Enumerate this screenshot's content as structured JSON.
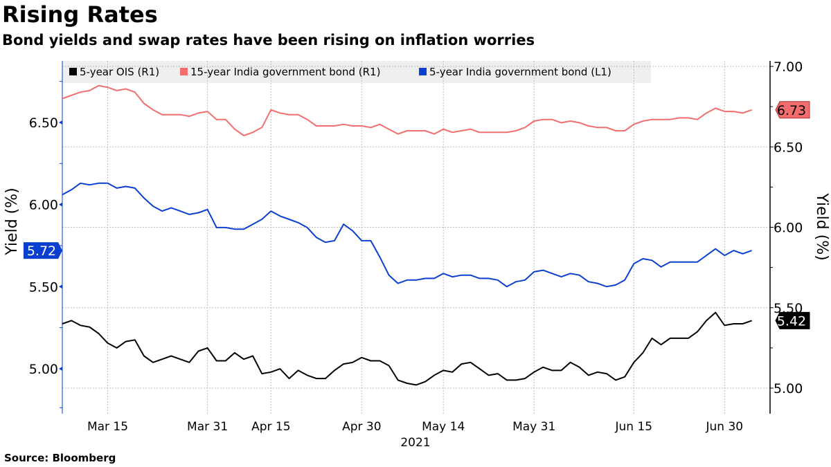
{
  "header": {
    "title": "Rising Rates",
    "subtitle": "Bond yields and swap rates have been rising on inflation worries"
  },
  "footer": {
    "source": "Source: Bloomberg"
  },
  "chart_data": {
    "type": "line",
    "title": "Rising Rates",
    "subtitle": "Bond yields and swap rates have been rising on inflation worries",
    "xlabel": "2021",
    "x_tick_labels": [
      "Mar 15",
      "Mar 31",
      "Apr 15",
      "Apr 30",
      "May 14",
      "May 31",
      "Jun 15",
      "Jun 30"
    ],
    "x_tick_dates": [
      "2021-03-15",
      "2021-03-31",
      "2021-04-15",
      "2021-04-30",
      "2021-05-14",
      "2021-05-31",
      "2021-06-15",
      "2021-06-30"
    ],
    "y_left": {
      "label": "Yield (%)",
      "ticks": [
        "5.00",
        "5.50",
        "6.00",
        "6.50"
      ],
      "range": [
        4.76,
        6.83
      ],
      "color": "#0a3fd0"
    },
    "y_right": {
      "label": "Yield (%)",
      "ticks": [
        "5.00",
        "5.50",
        "6.00",
        "6.50",
        "7.00"
      ],
      "range": [
        4.84,
        7.02
      ]
    },
    "grid": true,
    "legend_placement": "top-left",
    "x": [
      "2021-03-05",
      "2021-03-08",
      "2021-03-09",
      "2021-03-10",
      "2021-03-12",
      "2021-03-15",
      "2021-03-16",
      "2021-03-17",
      "2021-03-18",
      "2021-03-19",
      "2021-03-22",
      "2021-03-23",
      "2021-03-24",
      "2021-03-25",
      "2021-03-26",
      "2021-03-30",
      "2021-03-31",
      "2021-04-05",
      "2021-04-06",
      "2021-04-07",
      "2021-04-08",
      "2021-04-09",
      "2021-04-12",
      "2021-04-15",
      "2021-04-16",
      "2021-04-19",
      "2021-04-20",
      "2021-04-22",
      "2021-04-23",
      "2021-04-26",
      "2021-04-27",
      "2021-04-28",
      "2021-04-29",
      "2021-04-30",
      "2021-05-03",
      "2021-05-04",
      "2021-05-05",
      "2021-05-06",
      "2021-05-07",
      "2021-05-10",
      "2021-05-11",
      "2021-05-12",
      "2021-05-14",
      "2021-05-17",
      "2021-05-18",
      "2021-05-19",
      "2021-05-20",
      "2021-05-21",
      "2021-05-24",
      "2021-05-25",
      "2021-05-27",
      "2021-05-28",
      "2021-05-31",
      "2021-06-01",
      "2021-06-02",
      "2021-06-03",
      "2021-06-04",
      "2021-06-07",
      "2021-06-08",
      "2021-06-09",
      "2021-06-10",
      "2021-06-11",
      "2021-06-14",
      "2021-06-15",
      "2021-06-17",
      "2021-06-18",
      "2021-06-21",
      "2021-06-22",
      "2021-06-23",
      "2021-06-24",
      "2021-06-25",
      "2021-06-28",
      "2021-06-29",
      "2021-06-30",
      "2021-07-01",
      "2021-07-02",
      "2021-07-05"
    ],
    "series": [
      {
        "name": "5-year OIS (R1)",
        "axis": "right",
        "color": "#000000",
        "last_label": "5.42",
        "values": [
          5.4,
          5.42,
          5.39,
          5.38,
          5.34,
          5.28,
          5.25,
          5.29,
          5.3,
          5.2,
          5.16,
          5.18,
          5.2,
          5.18,
          5.16,
          5.23,
          5.25,
          5.17,
          5.17,
          5.22,
          5.18,
          5.2,
          5.09,
          5.1,
          5.12,
          5.06,
          5.11,
          5.08,
          5.06,
          5.06,
          5.11,
          5.15,
          5.16,
          5.19,
          5.17,
          5.17,
          5.14,
          5.05,
          5.03,
          5.02,
          5.04,
          5.08,
          5.11,
          5.1,
          5.15,
          5.16,
          5.12,
          5.08,
          5.09,
          5.05,
          5.05,
          5.06,
          5.1,
          5.13,
          5.11,
          5.11,
          5.16,
          5.13,
          5.08,
          5.1,
          5.09,
          5.05,
          5.07,
          5.16,
          5.22,
          5.31,
          5.27,
          5.31,
          5.31,
          5.31,
          5.35,
          5.42,
          5.47,
          5.39,
          5.4,
          5.4,
          5.42
        ]
      },
      {
        "name": "15-year India government bond  (R1)",
        "axis": "right",
        "color": "#f26d6d",
        "last_label": "6.73",
        "values": [
          6.8,
          6.82,
          6.84,
          6.85,
          6.88,
          6.87,
          6.85,
          6.86,
          6.84,
          6.77,
          6.73,
          6.7,
          6.7,
          6.7,
          6.69,
          6.71,
          6.72,
          6.67,
          6.67,
          6.61,
          6.57,
          6.59,
          6.62,
          6.73,
          6.71,
          6.7,
          6.7,
          6.67,
          6.63,
          6.63,
          6.63,
          6.64,
          6.63,
          6.63,
          6.62,
          6.64,
          6.61,
          6.58,
          6.6,
          6.6,
          6.6,
          6.58,
          6.61,
          6.59,
          6.6,
          6.61,
          6.59,
          6.59,
          6.59,
          6.59,
          6.6,
          6.62,
          6.66,
          6.67,
          6.67,
          6.65,
          6.66,
          6.65,
          6.63,
          6.62,
          6.62,
          6.6,
          6.6,
          6.64,
          6.66,
          6.67,
          6.67,
          6.67,
          6.68,
          6.68,
          6.67,
          6.71,
          6.74,
          6.72,
          6.72,
          6.71,
          6.73
        ]
      },
      {
        "name": "5-year India government bond (L1)",
        "axis": "left",
        "color": "#0a3fd0",
        "last_label": "5.72",
        "values": [
          6.06,
          6.09,
          6.13,
          6.12,
          6.13,
          6.13,
          6.1,
          6.11,
          6.1,
          6.04,
          5.99,
          5.96,
          5.98,
          5.96,
          5.94,
          5.95,
          5.97,
          5.86,
          5.86,
          5.85,
          5.85,
          5.88,
          5.91,
          5.96,
          5.93,
          5.91,
          5.89,
          5.86,
          5.8,
          5.77,
          5.78,
          5.88,
          5.84,
          5.78,
          5.78,
          5.68,
          5.57,
          5.52,
          5.54,
          5.54,
          5.55,
          5.55,
          5.58,
          5.56,
          5.57,
          5.57,
          5.55,
          5.55,
          5.54,
          5.5,
          5.53,
          5.54,
          5.59,
          5.6,
          5.58,
          5.56,
          5.58,
          5.57,
          5.53,
          5.52,
          5.5,
          5.51,
          5.54,
          5.64,
          5.67,
          5.66,
          5.62,
          5.65,
          5.65,
          5.65,
          5.65,
          5.69,
          5.73,
          5.69,
          5.72,
          5.7,
          5.72
        ]
      }
    ]
  }
}
